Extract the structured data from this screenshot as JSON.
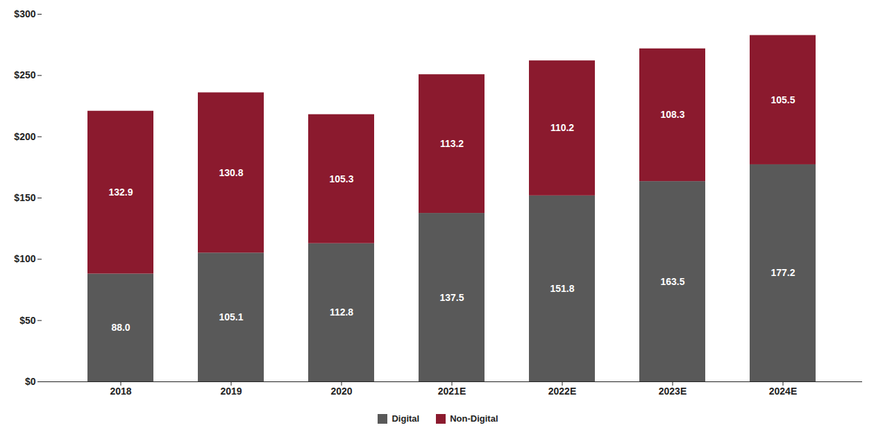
{
  "chart_data": {
    "type": "bar",
    "stacked": true,
    "data_labels": true,
    "grid": false,
    "legend": "bottom",
    "categories": [
      "2018",
      "2019",
      "2020",
      "2021E",
      "2022E",
      "2023E",
      "2024E"
    ],
    "series": [
      {
        "name": "Digital",
        "color": "#595959",
        "values": [
          88.0,
          105.1,
          112.8,
          137.5,
          151.8,
          163.5,
          177.2
        ],
        "value_labels": [
          "88.0",
          "105.1",
          "112.8",
          "137.5",
          "151.8",
          "163.5",
          "177.2"
        ]
      },
      {
        "name": "Non-Digital",
        "color": "#8b1a2e",
        "values": [
          132.9,
          130.8,
          105.3,
          113.2,
          110.2,
          108.3,
          105.5
        ],
        "value_labels": [
          "132.9",
          "130.8",
          "105.3",
          "113.2",
          "110.2",
          "108.3",
          "105.5"
        ]
      }
    ],
    "ylim": [
      0,
      300
    ],
    "yticks": [
      {
        "value": 0,
        "label": "$0"
      },
      {
        "value": 50,
        "label": "$50"
      },
      {
        "value": 100,
        "label": "$100"
      },
      {
        "value": 150,
        "label": "$150"
      },
      {
        "value": 200,
        "label": "$200"
      },
      {
        "value": 250,
        "label": "$250"
      },
      {
        "value": 300,
        "label": "$300"
      }
    ]
  }
}
